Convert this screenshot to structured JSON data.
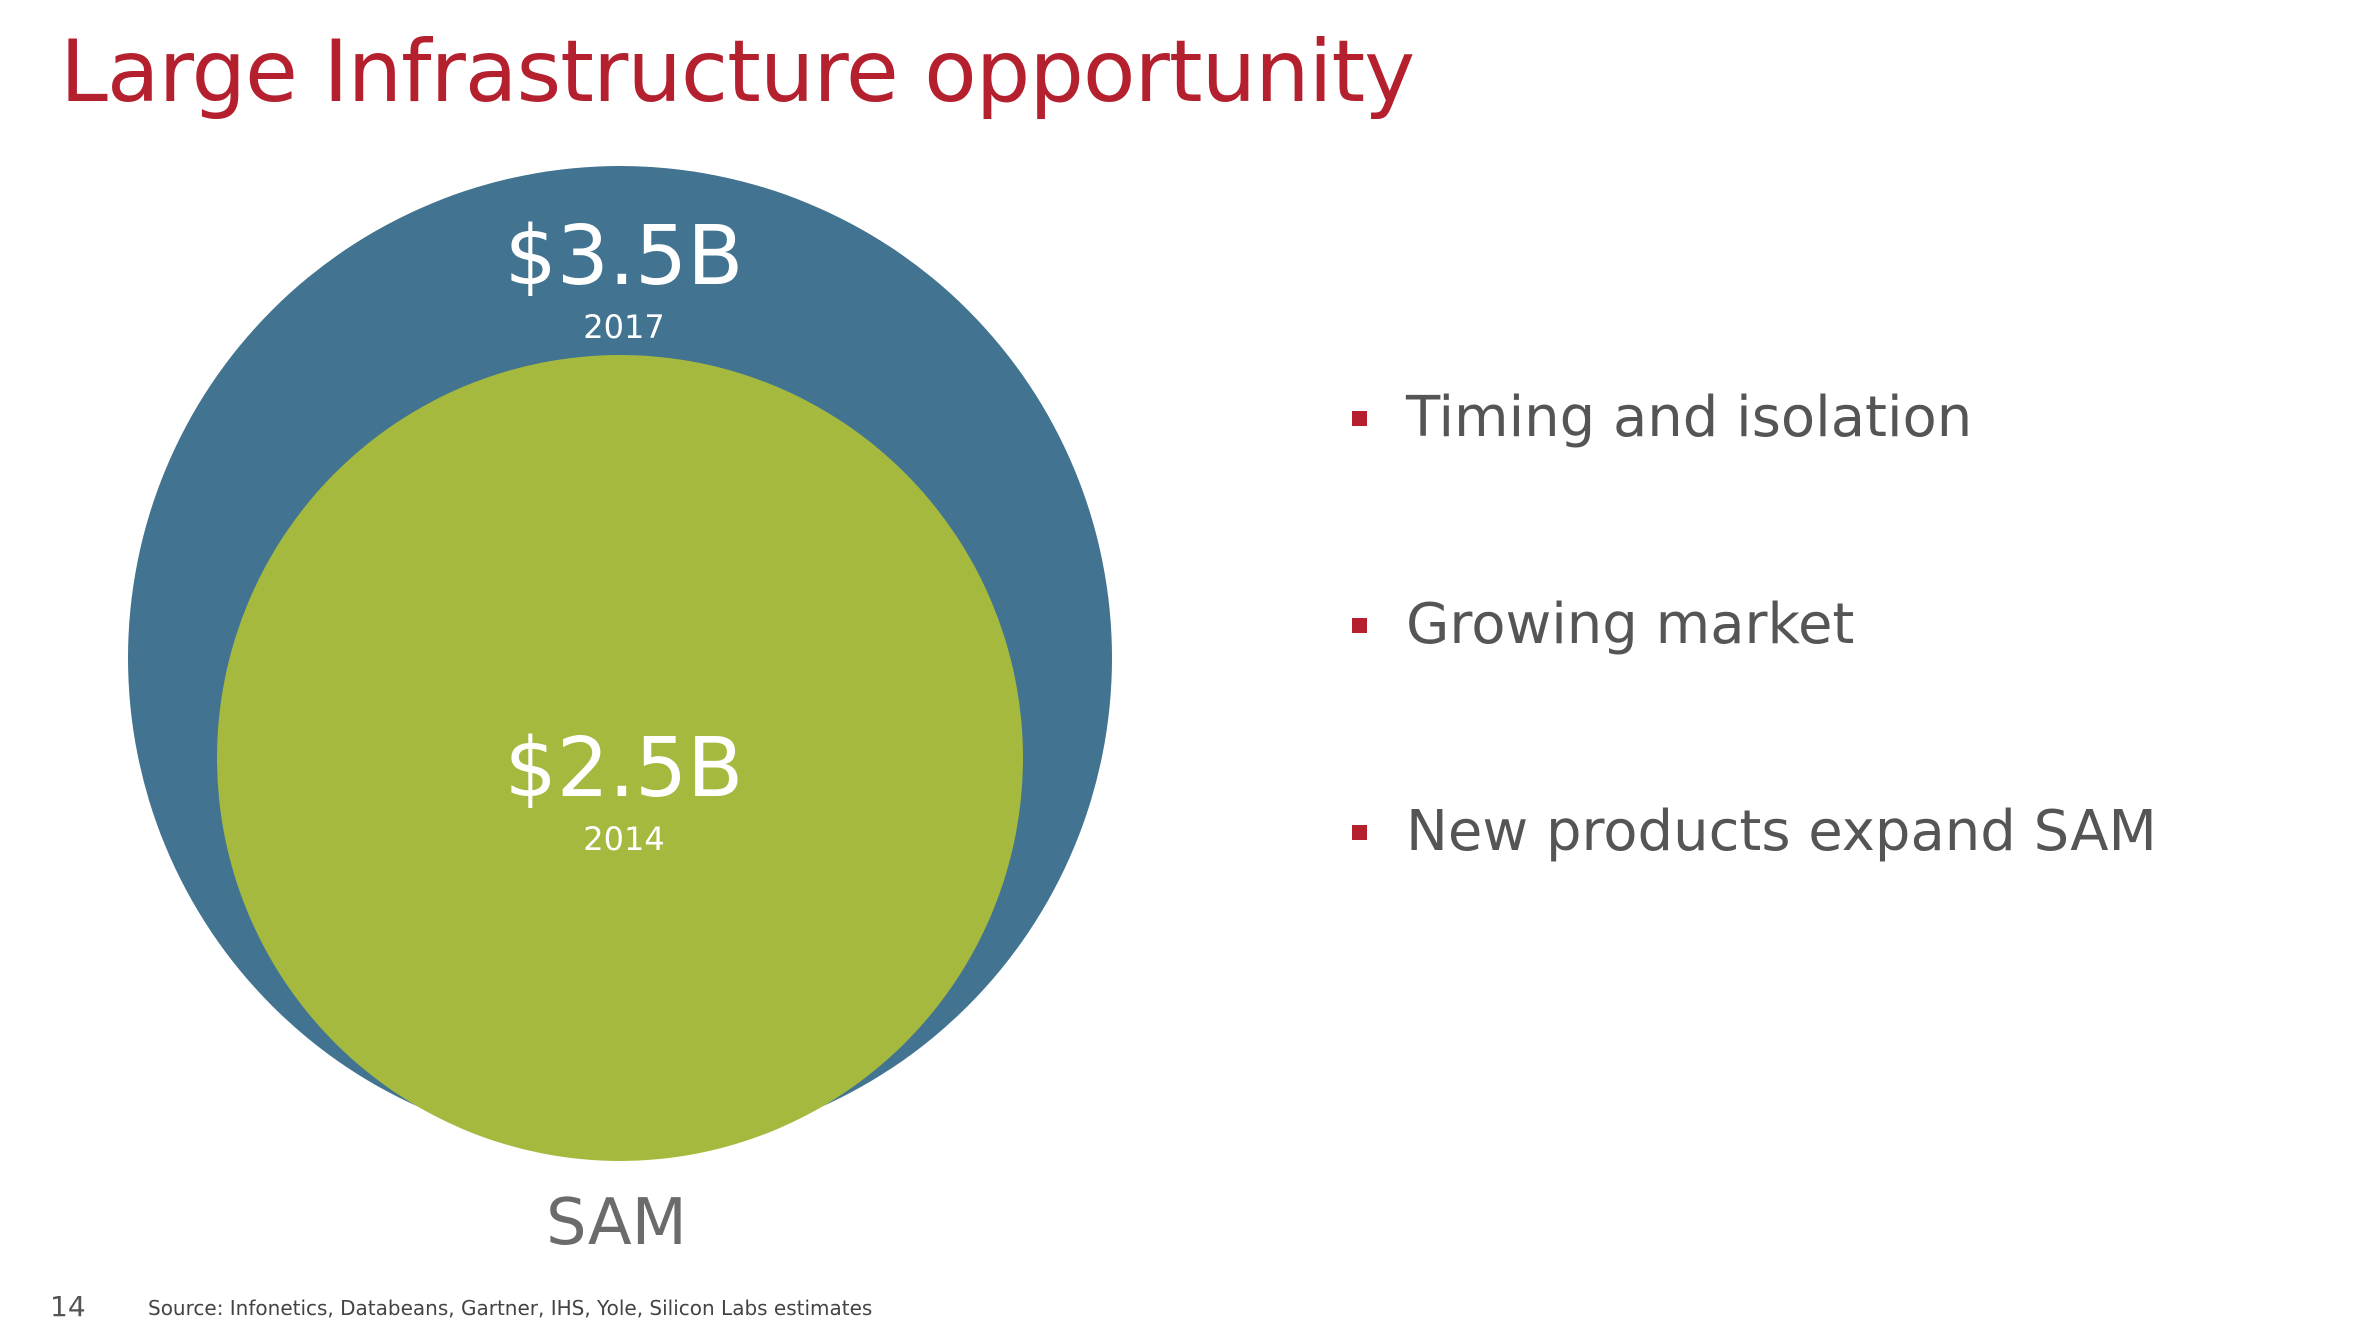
{
  "slide": {
    "title": "Large Infrastructure opportunity",
    "page_number": "14",
    "source": "Source:  Infonetics, Databeans, Gartner, IHS, Yole, Silicon Labs estimates"
  },
  "diagram": {
    "outer": {
      "value": "$3.5B",
      "year": "2017",
      "color": "#427491"
    },
    "inner": {
      "value": "$2.5B",
      "year": "2014",
      "color": "#A6B93F"
    },
    "caption": "SAM"
  },
  "bullets": [
    {
      "text": "Timing and isolation"
    },
    {
      "text": "Growing market"
    },
    {
      "text": "New products expand SAM"
    }
  ],
  "colors": {
    "accent": "#B5202E",
    "text": "#555555"
  }
}
